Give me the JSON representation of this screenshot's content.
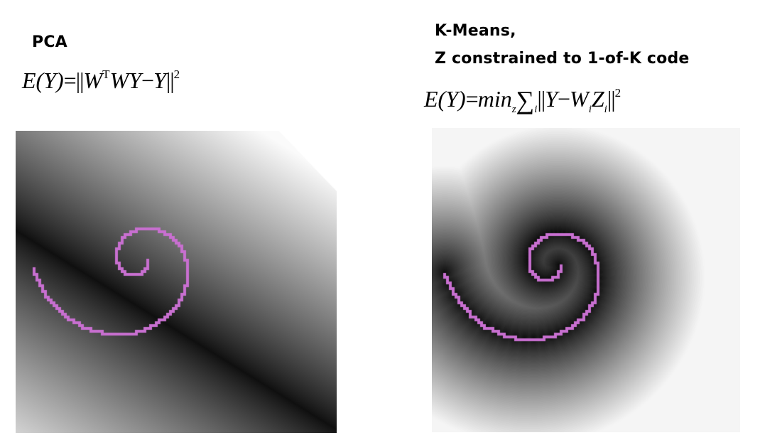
{
  "left_panel": {
    "title": "PCA",
    "formula": {
      "lhs": "E",
      "arg": "Y",
      "eq": "=",
      "norm_open": "||",
      "body_w": "W",
      "transpose": "T",
      "body_rest": "WY",
      "minus": "−",
      "target": "Y",
      "norm_close": "||",
      "power": "2"
    }
  },
  "right_panel": {
    "title_line1": "K-Means,",
    "title_line2": "Z constrained to 1-of-K code",
    "formula": {
      "lhs": "E",
      "arg": "Y",
      "eq": "=",
      "min": "min",
      "min_sub": "z",
      "sum": "∑",
      "sum_sub": "i",
      "norm_open": "||",
      "y": "Y",
      "minus": "−",
      "w": "W",
      "w_sub": "i",
      "z": "Z",
      "z_sub": "i",
      "norm_close": "||",
      "power": "2"
    }
  },
  "colors": {
    "spiral": "#c86fd0",
    "background": "#ffffff"
  }
}
